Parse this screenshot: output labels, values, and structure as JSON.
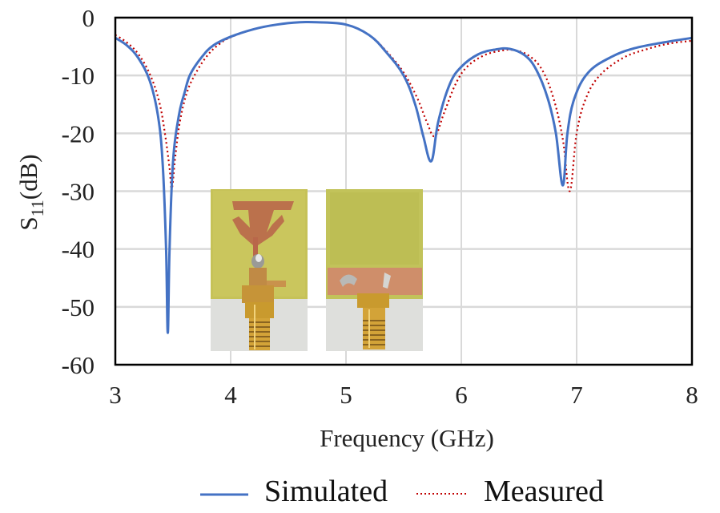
{
  "chart_data": {
    "type": "line",
    "title": "",
    "xlabel": "Frequency (GHz)",
    "ylabel": "S11(dB)",
    "ylabel_parts": {
      "main": "S",
      "sub": "11",
      "unit": "(dB)"
    },
    "xlim": [
      3,
      8
    ],
    "ylim": [
      -60,
      0
    ],
    "xticks": [
      3,
      4,
      5,
      6,
      7,
      8
    ],
    "yticks": [
      0,
      -10,
      -20,
      -30,
      -40,
      -50,
      -60
    ],
    "xtick_labels": [
      "3",
      "4",
      "5",
      "6",
      "7",
      "8"
    ],
    "ytick_labels": [
      "0",
      "-10",
      "-20",
      "-30",
      "-40",
      "-50",
      "-60"
    ],
    "grid": true,
    "legend_position": "bottom",
    "series": [
      {
        "name": "Simulated",
        "color": "#4472C4",
        "style": "solid",
        "points": [
          [
            3.0,
            -3.5
          ],
          [
            3.1,
            -4.8
          ],
          [
            3.2,
            -7.0
          ],
          [
            3.3,
            -11.0
          ],
          [
            3.37,
            -17.0
          ],
          [
            3.41,
            -25.0
          ],
          [
            3.44,
            -40.0
          ],
          [
            3.455,
            -54.5
          ],
          [
            3.47,
            -40.0
          ],
          [
            3.5,
            -25.0
          ],
          [
            3.55,
            -17.0
          ],
          [
            3.6,
            -13.0
          ],
          [
            3.65,
            -9.8
          ],
          [
            3.75,
            -6.8
          ],
          [
            3.85,
            -4.8
          ],
          [
            4.0,
            -3.3
          ],
          [
            4.2,
            -2.0
          ],
          [
            4.4,
            -1.2
          ],
          [
            4.6,
            -0.8
          ],
          [
            4.75,
            -0.8
          ],
          [
            5.0,
            -1.2
          ],
          [
            5.2,
            -3.0
          ],
          [
            5.35,
            -6.0
          ],
          [
            5.5,
            -10.0
          ],
          [
            5.6,
            -15.0
          ],
          [
            5.67,
            -20.5
          ],
          [
            5.74,
            -24.8
          ],
          [
            5.8,
            -18.0
          ],
          [
            5.9,
            -11.5
          ],
          [
            6.0,
            -8.5
          ],
          [
            6.15,
            -6.3
          ],
          [
            6.3,
            -5.5
          ],
          [
            6.42,
            -5.4
          ],
          [
            6.55,
            -6.5
          ],
          [
            6.65,
            -9.0
          ],
          [
            6.75,
            -14.0
          ],
          [
            6.82,
            -20.0
          ],
          [
            6.88,
            -29.0
          ],
          [
            6.92,
            -20.0
          ],
          [
            6.98,
            -14.0
          ],
          [
            7.1,
            -9.5
          ],
          [
            7.3,
            -6.8
          ],
          [
            7.5,
            -5.3
          ],
          [
            7.75,
            -4.3
          ],
          [
            8.0,
            -3.5
          ]
        ]
      },
      {
        "name": "Measured",
        "color": "#C00000",
        "style": "dotted",
        "points": [
          [
            3.0,
            -3.0
          ],
          [
            3.1,
            -4.3
          ],
          [
            3.2,
            -6.3
          ],
          [
            3.3,
            -9.8
          ],
          [
            3.38,
            -14.5
          ],
          [
            3.43,
            -20.0
          ],
          [
            3.47,
            -26.0
          ],
          [
            3.49,
            -29.5
          ],
          [
            3.52,
            -24.0
          ],
          [
            3.56,
            -18.0
          ],
          [
            3.62,
            -13.0
          ],
          [
            3.7,
            -9.5
          ],
          [
            3.8,
            -6.5
          ],
          [
            3.9,
            -4.6
          ],
          [
            4.0,
            -3.4
          ],
          [
            4.2,
            -2.0
          ],
          [
            4.4,
            -1.2
          ],
          [
            4.6,
            -0.8
          ],
          [
            4.75,
            -0.8
          ],
          [
            5.0,
            -1.2
          ],
          [
            5.2,
            -3.0
          ],
          [
            5.35,
            -5.8
          ],
          [
            5.5,
            -9.5
          ],
          [
            5.62,
            -14.0
          ],
          [
            5.7,
            -18.0
          ],
          [
            5.77,
            -20.5
          ],
          [
            5.85,
            -16.5
          ],
          [
            5.95,
            -11.5
          ],
          [
            6.05,
            -8.5
          ],
          [
            6.2,
            -6.5
          ],
          [
            6.35,
            -5.7
          ],
          [
            6.45,
            -5.6
          ],
          [
            6.58,
            -6.5
          ],
          [
            6.7,
            -9.0
          ],
          [
            6.8,
            -14.0
          ],
          [
            6.88,
            -21.0
          ],
          [
            6.94,
            -30.0
          ],
          [
            7.0,
            -20.0
          ],
          [
            7.08,
            -14.0
          ],
          [
            7.2,
            -10.0
          ],
          [
            7.4,
            -7.0
          ],
          [
            7.6,
            -5.5
          ],
          [
            7.8,
            -4.5
          ],
          [
            8.0,
            -4.0
          ]
        ]
      }
    ],
    "annotations": [
      {
        "type": "inset-photo",
        "label": "antenna-front",
        "x_range": [
          3.83,
          4.66
        ],
        "y_range": [
          -30.5,
          -58.5
        ]
      },
      {
        "type": "inset-photo",
        "label": "antenna-back",
        "x_range": [
          4.83,
          5.66
        ],
        "y_range": [
          -30.5,
          -58.5
        ]
      }
    ]
  },
  "legend": {
    "items": [
      {
        "label": "Simulated",
        "color": "#4472C4",
        "style": "solid"
      },
      {
        "label": "Measured",
        "color": "#C00000",
        "style": "dotted"
      }
    ]
  },
  "colors": {
    "grid": "#d9d9d9",
    "axis": "#000000",
    "pcb": "#c9c45a",
    "copper": "#c0714a",
    "connector": "#c99a2e"
  }
}
